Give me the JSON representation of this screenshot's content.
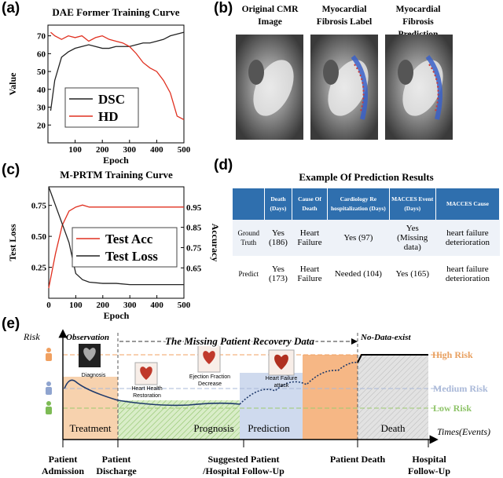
{
  "panel_labels": [
    "(a)",
    "(b)",
    "(c)",
    "(d)",
    "(e)"
  ],
  "chart_data": [
    {
      "type": "line",
      "title": "DAE Former Training Curve",
      "x_label": "Epoch",
      "y_label": "Value",
      "x": [
        10,
        25,
        50,
        75,
        100,
        125,
        150,
        175,
        200,
        225,
        250,
        275,
        300,
        325,
        350,
        375,
        400,
        425,
        450,
        475,
        500
      ],
      "xlim": [
        0,
        500
      ],
      "xticks": [
        100,
        200,
        300,
        400,
        500
      ],
      "ylim": [
        10,
        76
      ],
      "yticks": [
        20,
        30,
        40,
        50,
        60,
        70
      ],
      "series": [
        {
          "name": "DSC",
          "color": "#222222",
          "values": [
            28,
            45,
            58,
            61,
            63,
            64,
            65,
            64,
            63,
            63,
            64,
            64,
            64,
            65,
            66,
            66,
            67,
            68,
            70,
            71,
            72
          ]
        },
        {
          "name": "HD",
          "color": "#e03020",
          "values": [
            72,
            70,
            68,
            70,
            69,
            70,
            67,
            69,
            70,
            68,
            67,
            66,
            64,
            60,
            55,
            52,
            50,
            45,
            38,
            25,
            23
          ]
        }
      ]
    },
    {
      "type": "line",
      "title": "M-PRTM Training Curve",
      "x_label": "Epoch",
      "y_label": "Test Loss",
      "y2_label": "Accuracy",
      "x": [
        0,
        25,
        50,
        75,
        100,
        125,
        150,
        200,
        250,
        300,
        350,
        400,
        450,
        500
      ],
      "xlim": [
        0,
        500
      ],
      "xticks": [
        0,
        100,
        200,
        300,
        400,
        500
      ],
      "ylim": [
        0,
        0.9
      ],
      "yticks": [
        0.25,
        {
          "value": 0.5,
          "label": "0.50"
        },
        0.75
      ],
      "y2lim": [
        0.5,
        1.05
      ],
      "y2ticks": [
        0.65,
        0.75,
        0.85,
        0.95
      ],
      "series": [
        {
          "name": "Test Acc",
          "color": "#e03020",
          "axis": "y2",
          "values": [
            0.55,
            0.72,
            0.86,
            0.93,
            0.95,
            0.96,
            0.95,
            0.95,
            0.95,
            0.95,
            0.95,
            0.95,
            0.95,
            0.95
          ]
        },
        {
          "name": "Test Loss",
          "color": "#222222",
          "values": [
            0.9,
            0.75,
            0.6,
            0.45,
            0.2,
            0.15,
            0.13,
            0.12,
            0.12,
            0.11,
            0.11,
            0.11,
            0.11,
            0.11
          ]
        }
      ]
    }
  ],
  "images": {
    "captions": [
      "Original CMR Image",
      "Myocardial Fibrosis Label",
      "Myocardial Fibrosis Prediction"
    ]
  },
  "table": {
    "title": "Example Of Prediction Results",
    "header": [
      "Death (Days)",
      "Cause Of Death",
      "Cardiology Re hospitalization (Days)",
      "MACCES Event (Days)",
      "MACCES Cause"
    ],
    "rows": [
      [
        "Ground Truth",
        "Yes (186)",
        "Heart Failure",
        "Yes (97)",
        "Yes (Missing data)",
        "heart failure deterioration"
      ],
      [
        "Predict",
        "Yes (173)",
        "Heart Failure",
        "Needed (104)",
        "Yes (165)",
        "heart failure deterioration"
      ]
    ]
  },
  "diagram": {
    "y_label": "Risk",
    "x_label": "Times(Events)",
    "top_labels": [
      "Observation",
      "The Missing Patient Recovery Data",
      "No-Data-exist"
    ],
    "risk_levels": [
      "High Risk",
      "Medium Risk",
      "Low Risk"
    ],
    "events": [
      "Diagnosis",
      "Heart Health Restoration",
      "Ejection Fraction Decrease",
      "Heart Failure attack"
    ],
    "phases": [
      "Treatment",
      "Prognosis",
      "Prediction",
      "Death"
    ],
    "milestones": [
      "Patient Admission",
      "Patient Discharge",
      "Suggested Patient /Hospital Follow-Up",
      "Patient Death",
      "Hospital Follow-Up"
    ]
  }
}
